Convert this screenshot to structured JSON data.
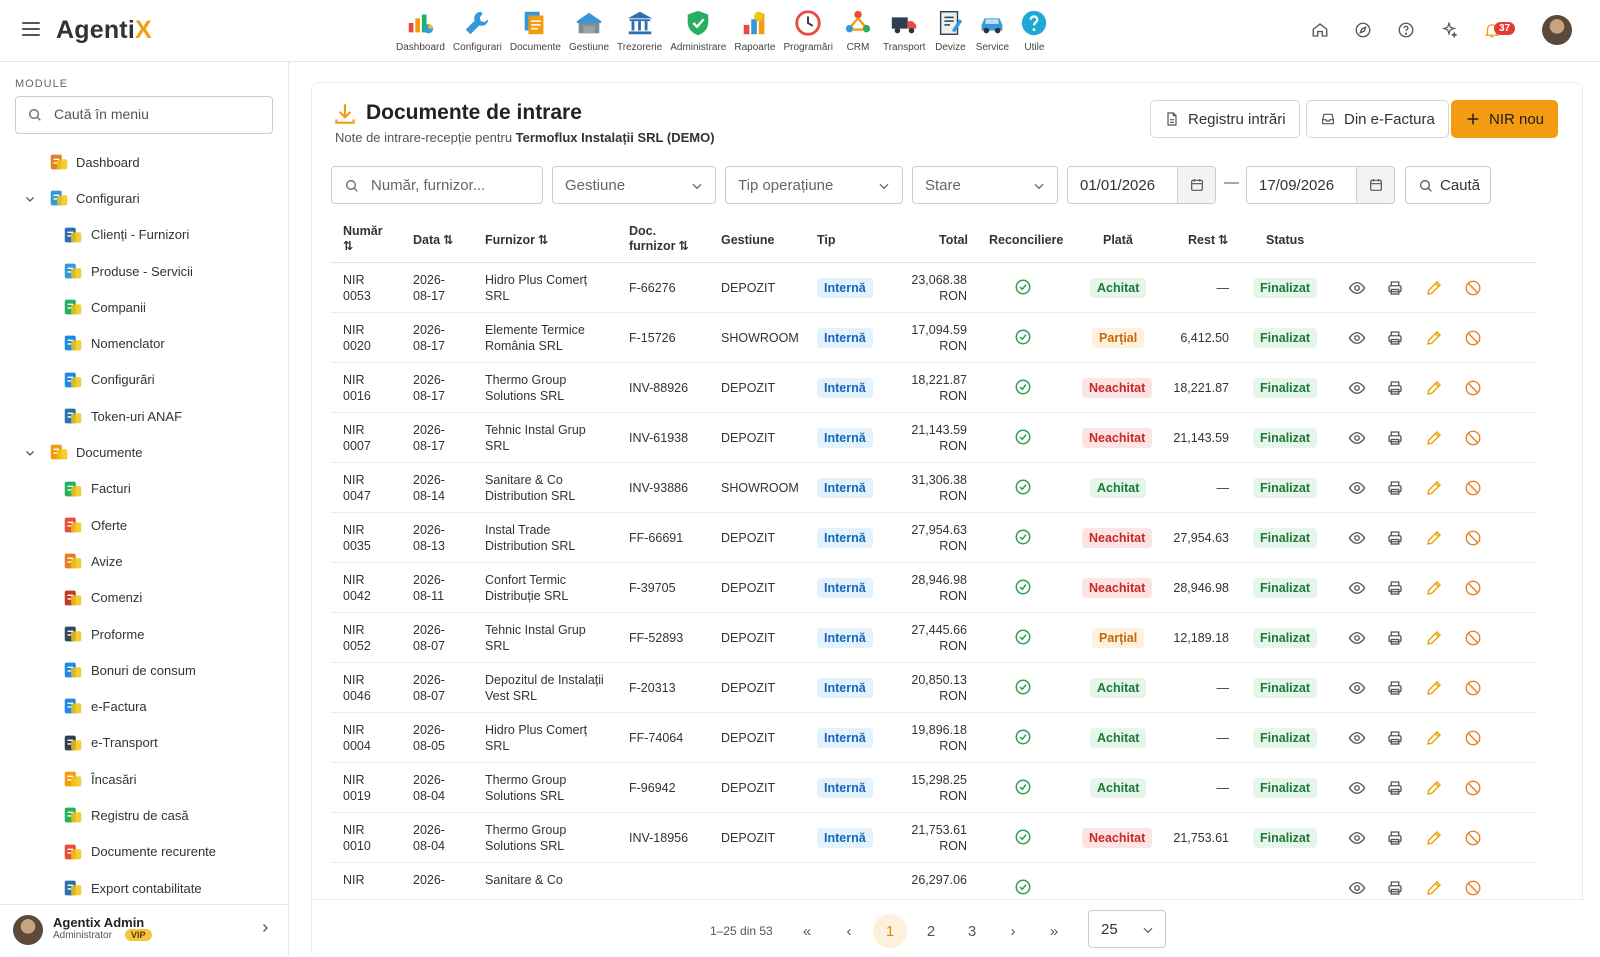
{
  "app": {
    "logo_main": "Agenti",
    "logo_accent": "X",
    "notif_count": "37"
  },
  "modules": [
    {
      "label": "Dashboard",
      "icon": "dashboard-icon"
    },
    {
      "label": "Configurari",
      "icon": "configurari-icon"
    },
    {
      "label": "Documente",
      "icon": "documente-icon"
    },
    {
      "label": "Gestiune",
      "icon": "gestiune-icon"
    },
    {
      "label": "Trezorerie",
      "icon": "trezorerie-icon"
    },
    {
      "label": "Administrare",
      "icon": "administrare-icon"
    },
    {
      "label": "Rapoarte",
      "icon": "rapoarte-icon"
    },
    {
      "label": "Programări",
      "icon": "programari-icon"
    },
    {
      "label": "CRM",
      "icon": "crm-icon"
    },
    {
      "label": "Transport",
      "icon": "transport-icon"
    },
    {
      "label": "Devize",
      "icon": "devize-icon"
    },
    {
      "label": "Service",
      "icon": "service-icon"
    },
    {
      "label": "Utile",
      "icon": "utile-icon"
    }
  ],
  "sidebar": {
    "title": "MODULE",
    "search_placeholder": "Caută în meniu",
    "items": [
      {
        "label": "Dashboard",
        "level": 0,
        "chevron": false
      },
      {
        "label": "Configurari",
        "level": 0,
        "chevron": true
      },
      {
        "label": "Clienți - Furnizori",
        "level": 1
      },
      {
        "label": "Produse - Servicii",
        "level": 1
      },
      {
        "label": "Companii",
        "level": 1
      },
      {
        "label": "Nomenclator",
        "level": 1
      },
      {
        "label": "Configurări",
        "level": 1
      },
      {
        "label": "Token-uri ANAF",
        "level": 1
      },
      {
        "label": "Documente",
        "level": 0,
        "chevron": true
      },
      {
        "label": "Facturi",
        "level": 1
      },
      {
        "label": "Oferte",
        "level": 1
      },
      {
        "label": "Avize",
        "level": 1
      },
      {
        "label": "Comenzi",
        "level": 1
      },
      {
        "label": "Proforme",
        "level": 1
      },
      {
        "label": "Bonuri de consum",
        "level": 1
      },
      {
        "label": "e-Factura",
        "level": 1
      },
      {
        "label": "e-Transport",
        "level": 1
      },
      {
        "label": "Încasări",
        "level": 1
      },
      {
        "label": "Registru de casă",
        "level": 1
      },
      {
        "label": "Documente recurente",
        "level": 1
      },
      {
        "label": "Export contabilitate",
        "level": 1
      }
    ],
    "user": {
      "name": "Agentix Admin",
      "role": "Administrator",
      "badge": "VIP"
    }
  },
  "page": {
    "title": "Documente de intrare",
    "subtitle_prefix": "Note de intrare-recepție pentru ",
    "subtitle_company": "Termoflux Instalații SRL (DEMO)",
    "btn_registru": "Registru intrări",
    "btn_efactura": "Din e-Factura",
    "btn_new": "NIR nou"
  },
  "filters": {
    "search_placeholder": "Număr, furnizor...",
    "gestiune": "Gestiune",
    "tip": "Tip operațiune",
    "stare": "Stare",
    "date_from": "01/01/2026",
    "date_to": "17/09/2026",
    "search_btn": "Caută"
  },
  "table": {
    "headers": {
      "numar_1": "Număr",
      "data": "Data",
      "furnizor": "Furnizor",
      "doc_1": "Doc.",
      "doc_2": "furnizor",
      "gestiune": "Gestiune",
      "tip": "Tip",
      "total": "Total",
      "reconciliere": "Reconciliere",
      "plata": "Plată",
      "rest": "Rest",
      "status": "Status"
    },
    "rows": [
      {
        "nr1": "NIR",
        "nr2": "0053",
        "d1": "2026-",
        "d2": "08-17",
        "f1": "Hidro Plus Comerț",
        "f2": "SRL",
        "doc": "F-66276",
        "gest": "DEPOZIT",
        "tip": "Internă",
        "t1": "23,068.38",
        "t2": "RON",
        "plata": "Achitat",
        "pk": "paid",
        "rest": "—",
        "status": "Finalizat"
      },
      {
        "nr1": "NIR",
        "nr2": "0020",
        "d1": "2026-",
        "d2": "08-17",
        "f1": "Elemente Termice",
        "f2": "România SRL",
        "doc": "F-15726",
        "gest": "SHOWROOM",
        "tip": "Internă",
        "t1": "17,094.59",
        "t2": "RON",
        "plata": "Parțial",
        "pk": "partial",
        "rest": "6,412.50",
        "status": "Finalizat"
      },
      {
        "nr1": "NIR",
        "nr2": "0016",
        "d1": "2026-",
        "d2": "08-17",
        "f1": "Thermo Group",
        "f2": "Solutions SRL",
        "doc": "INV-88926",
        "gest": "DEPOZIT",
        "tip": "Internă",
        "t1": "18,221.87",
        "t2": "RON",
        "plata": "Neachitat",
        "pk": "unpaid",
        "rest": "18,221.87",
        "status": "Finalizat"
      },
      {
        "nr1": "NIR",
        "nr2": "0007",
        "d1": "2026-",
        "d2": "08-17",
        "f1": "Tehnic Instal Grup",
        "f2": "SRL",
        "doc": "INV-61938",
        "gest": "DEPOZIT",
        "tip": "Internă",
        "t1": "21,143.59",
        "t2": "RON",
        "plata": "Neachitat",
        "pk": "unpaid",
        "rest": "21,143.59",
        "status": "Finalizat"
      },
      {
        "nr1": "NIR",
        "nr2": "0047",
        "d1": "2026-",
        "d2": "08-14",
        "f1": "Sanitare & Co",
        "f2": "Distribution SRL",
        "doc": "INV-93886",
        "gest": "SHOWROOM",
        "tip": "Internă",
        "t1": "31,306.38",
        "t2": "RON",
        "plata": "Achitat",
        "pk": "paid",
        "rest": "—",
        "status": "Finalizat"
      },
      {
        "nr1": "NIR",
        "nr2": "0035",
        "d1": "2026-",
        "d2": "08-13",
        "f1": "Instal Trade",
        "f2": "Distribution SRL",
        "doc": "FF-66691",
        "gest": "DEPOZIT",
        "tip": "Internă",
        "t1": "27,954.63",
        "t2": "RON",
        "plata": "Neachitat",
        "pk": "unpaid",
        "rest": "27,954.63",
        "status": "Finalizat"
      },
      {
        "nr1": "NIR",
        "nr2": "0042",
        "d1": "2026-",
        "d2": "08-11",
        "f1": "Confort Termic",
        "f2": "Distribuție SRL",
        "doc": "F-39705",
        "gest": "DEPOZIT",
        "tip": "Internă",
        "t1": "28,946.98",
        "t2": "RON",
        "plata": "Neachitat",
        "pk": "unpaid",
        "rest": "28,946.98",
        "status": "Finalizat"
      },
      {
        "nr1": "NIR",
        "nr2": "0052",
        "d1": "2026-",
        "d2": "08-07",
        "f1": "Tehnic Instal Grup",
        "f2": "SRL",
        "doc": "FF-52893",
        "gest": "DEPOZIT",
        "tip": "Internă",
        "t1": "27,445.66",
        "t2": "RON",
        "plata": "Parțial",
        "pk": "partial",
        "rest": "12,189.18",
        "status": "Finalizat"
      },
      {
        "nr1": "NIR",
        "nr2": "0046",
        "d1": "2026-",
        "d2": "08-07",
        "f1": "Depozitul de Instalații",
        "f2": "Vest SRL",
        "doc": "F-20313",
        "gest": "DEPOZIT",
        "tip": "Internă",
        "t1": "20,850.13",
        "t2": "RON",
        "plata": "Achitat",
        "pk": "paid",
        "rest": "—",
        "status": "Finalizat"
      },
      {
        "nr1": "NIR",
        "nr2": "0004",
        "d1": "2026-",
        "d2": "08-05",
        "f1": "Hidro Plus Comerț",
        "f2": "SRL",
        "doc": "FF-74064",
        "gest": "DEPOZIT",
        "tip": "Internă",
        "t1": "19,896.18",
        "t2": "RON",
        "plata": "Achitat",
        "pk": "paid",
        "rest": "—",
        "status": "Finalizat"
      },
      {
        "nr1": "NIR",
        "nr2": "0019",
        "d1": "2026-",
        "d2": "08-04",
        "f1": "Thermo Group",
        "f2": "Solutions SRL",
        "doc": "F-96942",
        "gest": "DEPOZIT",
        "tip": "Internă",
        "t1": "15,298.25",
        "t2": "RON",
        "plata": "Achitat",
        "pk": "paid",
        "rest": "—",
        "status": "Finalizat"
      },
      {
        "nr1": "NIR",
        "nr2": "0010",
        "d1": "2026-",
        "d2": "08-04",
        "f1": "Thermo Group",
        "f2": "Solutions SRL",
        "doc": "INV-18956",
        "gest": "DEPOZIT",
        "tip": "Internă",
        "t1": "21,753.61",
        "t2": "RON",
        "plata": "Neachitat",
        "pk": "unpaid",
        "rest": "21,753.61",
        "status": "Finalizat"
      },
      {
        "nr1": "NIR",
        "nr2": "",
        "d1": "2026-",
        "d2": "",
        "f1": "Sanitare & Co",
        "f2": "",
        "doc": "",
        "gest": "",
        "tip": "",
        "t1": "26,297.06",
        "t2": "",
        "plata": "",
        "pk": "unpaid",
        "rest": "",
        "status": ""
      }
    ]
  },
  "pagination": {
    "info": "1–25 din 53",
    "pages": [
      "1",
      "2",
      "3"
    ],
    "page_size": "25"
  },
  "colors": {
    "accent": "#f39c12",
    "paid": "#1b7a37",
    "unpaid": "#c62828",
    "partial": "#c7670a",
    "internal": "#1565c0"
  }
}
